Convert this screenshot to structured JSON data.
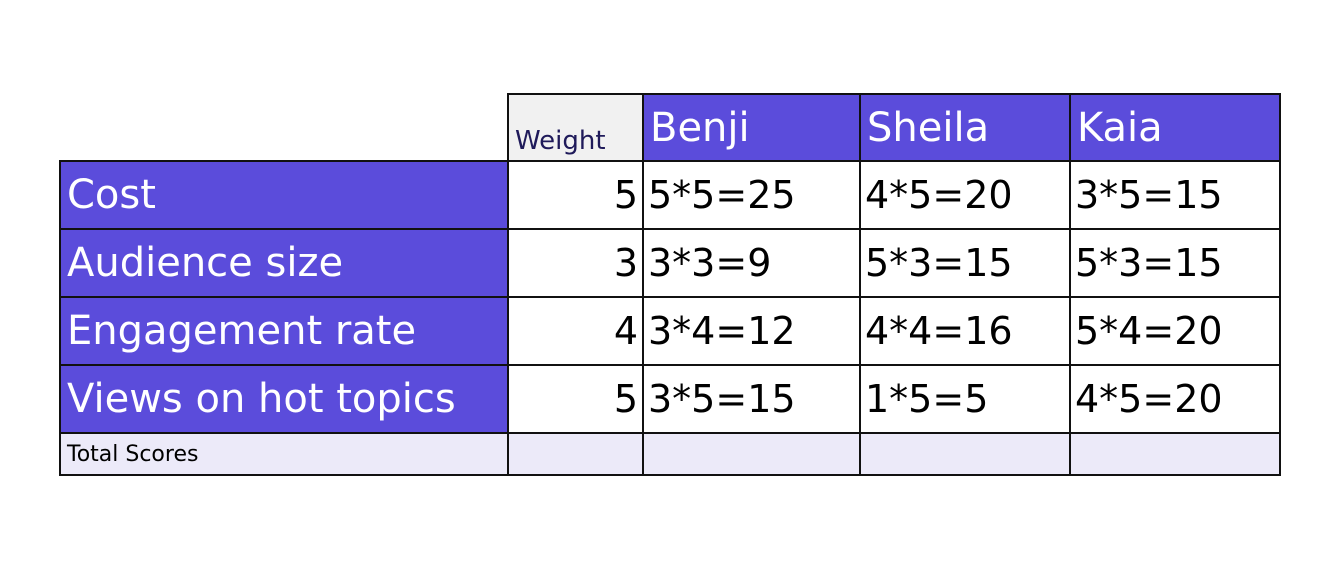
{
  "header": {
    "weight_label": "Weight",
    "candidates": [
      "Benji",
      "Sheila",
      "Kaia"
    ]
  },
  "rows": [
    {
      "criterion": "Cost",
      "weight": "5",
      "scores": [
        "5*5=25",
        "4*5=20",
        "3*5=15"
      ]
    },
    {
      "criterion": "Audience size",
      "weight": "3",
      "scores": [
        "3*3=9",
        "5*3=15",
        "5*3=15"
      ]
    },
    {
      "criterion": "Engagement rate",
      "weight": "4",
      "scores": [
        "3*4=12",
        "4*4=16",
        "5*4=20"
      ]
    },
    {
      "criterion": "Views on hot topics",
      "weight": "5",
      "scores": [
        "3*5=15",
        "1*5=5",
        "4*5=20"
      ]
    }
  ],
  "total": {
    "label": "Total Scores",
    "values": [
      "",
      "",
      "",
      ""
    ]
  },
  "colors": {
    "header_purple": "#5b4cdb",
    "total_row": "#eceaf9",
    "weight_header": "#f1f1f1"
  }
}
